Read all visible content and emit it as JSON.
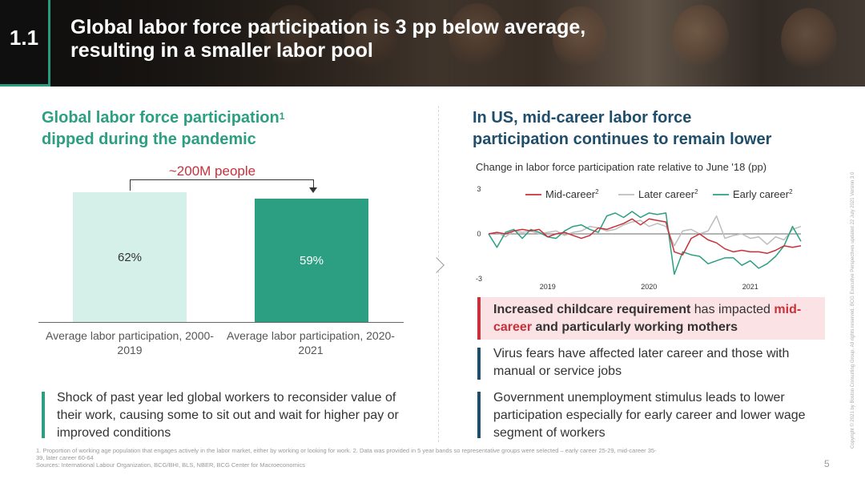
{
  "header": {
    "section_number": "1.1",
    "title_line1": "Global labor force participation is 3 pp below average,",
    "title_line2": "resulting in a smaller labor pool"
  },
  "left": {
    "heading_line1": "Global labor force participation",
    "heading_sup": "1",
    "heading_line2": "dipped during the pandemic",
    "difference_label": "~200M people",
    "callout": "Shock of past year led global workers to reconsider value of their work, causing some to sit out and wait for higher pay or improved conditions"
  },
  "right": {
    "heading_line1": "In US, mid-career labor force",
    "heading_line2": "participation continues to remain lower",
    "insights": [
      {
        "bold1": "Increased childcare requirement",
        "normal1": " has impacted ",
        "red": "mid-career",
        "bold2": " and particularly working mothers"
      },
      {
        "text": "Virus fears have affected later career and those with manual or service jobs"
      },
      {
        "text": "Government unemployment stimulus leads to lower participation especially for early career and lower wage segment of workers"
      }
    ]
  },
  "colors": {
    "teal": "#2c9f82",
    "teal_light": "#d5efe9",
    "navy": "#1f4e6b",
    "red": "#c9303a",
    "pink": "#fbe2e4",
    "gray_line": "#bdbdbd"
  },
  "chart_data": [
    {
      "type": "bar",
      "categories": [
        "Average labor participation, 2000-2019",
        "Average labor participation, 2020-2021"
      ],
      "values": [
        62,
        59
      ],
      "value_labels": [
        "62%",
        "59%"
      ],
      "colors": [
        "#d5efe9",
        "#2c9f82"
      ],
      "ylim": [
        0,
        66
      ]
    },
    {
      "type": "line",
      "title": "Change in labor force participation rate relative to June '18 (pp)",
      "ylim": [
        -3,
        3
      ],
      "yticks": [
        "3",
        "0",
        "-3"
      ],
      "xticks": [
        {
          "label": "2019",
          "t": 7
        },
        {
          "label": "2020",
          "t": 19
        },
        {
          "label": "2021",
          "t": 31
        }
      ],
      "legend": "top",
      "series": [
        {
          "name": "Mid-career",
          "sup": "2",
          "color": "#c9303a",
          "values": [
            0,
            0.1,
            0,
            0.2,
            0.3,
            0.2,
            0.3,
            -0.2,
            0,
            0.1,
            -0.1,
            -0.3,
            -0.1,
            0.4,
            0.3,
            0.5,
            0.7,
            1,
            0.6,
            1,
            0.9,
            0.8,
            -1.2,
            -1.4,
            -0.3,
            0,
            -0.4,
            -0.6,
            -1,
            -1.2,
            -1.1,
            -1.2,
            -1.2,
            -1.3,
            -1.1,
            -0.8,
            -0.9,
            -0.8
          ]
        },
        {
          "name": "Later career",
          "sup": "2",
          "color": "#bdbdbd",
          "values": [
            0,
            0.1,
            -0.2,
            0.2,
            0.1,
            0.2,
            0,
            0.1,
            0.2,
            -0.1,
            0.1,
            0.2,
            0.5,
            0.4,
            0.2,
            0.3,
            0.6,
            0.8,
            0.9,
            0.5,
            0.7,
            0.5,
            -0.8,
            0.2,
            0.3,
            0,
            0.2,
            1.2,
            -0.3,
            -0.1,
            0,
            -0.3,
            -0.2,
            -0.7,
            -0.2,
            -0.4,
            0.3,
            0.5
          ]
        },
        {
          "name": "Early career",
          "sup": "2",
          "color": "#2c9f82",
          "values": [
            0,
            -0.9,
            0.1,
            0.3,
            -0.3,
            0.3,
            0.1,
            -0.2,
            -0.3,
            0.2,
            0.5,
            0.6,
            0.3,
            0.1,
            1.2,
            1.4,
            1.1,
            1.5,
            1.1,
            1.4,
            1.3,
            1.4,
            -2.7,
            -1.2,
            -1.4,
            -1.5,
            -2,
            -1.8,
            -1.6,
            -1.6,
            -2.1,
            -1.8,
            -2.3,
            -2,
            -1.5,
            -0.8,
            0.5,
            -0.5
          ]
        }
      ]
    }
  ],
  "footnote": {
    "line1": "1. Proportion of working age population that engages actively in the labor market, either by working or looking for work. 2. Data was provided in 5 year bands so representative groups were selected – early career 25-29, mid-career 35-",
    "line2": "39, later career 60-64",
    "sources": "Sources: International Labour Organization, BCG/BHI, BLS, NBER, BCG Center for Macroeconomics"
  },
  "page_number": "5",
  "copyright": "Copyright © 2021 by Boston Consulting Group. All rights reserved. BCG Executive Perspectives updated 22 July 2021 Version 3.0"
}
